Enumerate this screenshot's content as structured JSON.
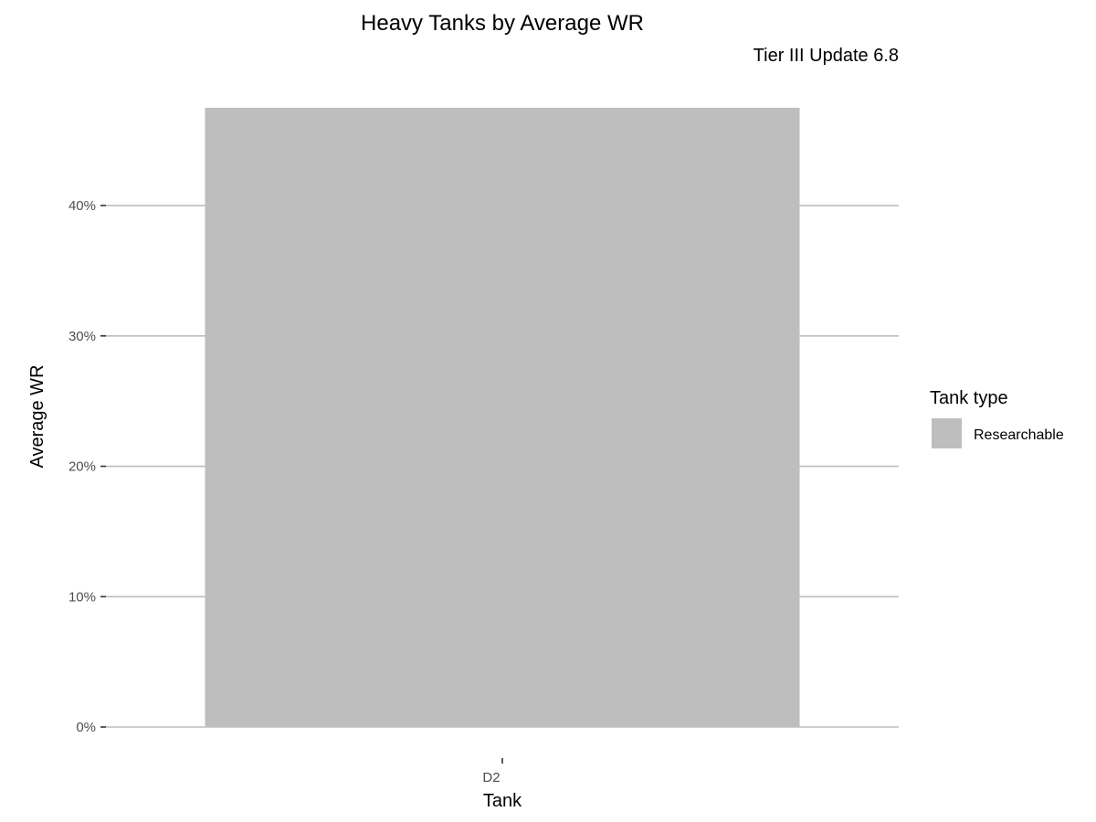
{
  "chart_data": {
    "type": "bar",
    "title": "Heavy Tanks by Average WR",
    "subtitle": "Tier III Update 6.8",
    "xlabel": "Tank",
    "ylabel": "Average WR",
    "categories": [
      "D2"
    ],
    "values": [
      0.475
    ],
    "ylim": [
      0,
      0.475
    ],
    "yticks": [
      0,
      0.1,
      0.2,
      0.3,
      0.4
    ],
    "ytick_labels": [
      "0%",
      "10%",
      "20%",
      "30%",
      "40%"
    ],
    "grid": "horizontal-major",
    "legend": {
      "title": "Tank type",
      "placement": "right",
      "items": [
        {
          "label": "Researchable",
          "color": "#bebebe"
        }
      ]
    },
    "colors": {
      "bar": "#bebebe",
      "grid": "#bdbdbd",
      "tick": "#333333"
    }
  }
}
